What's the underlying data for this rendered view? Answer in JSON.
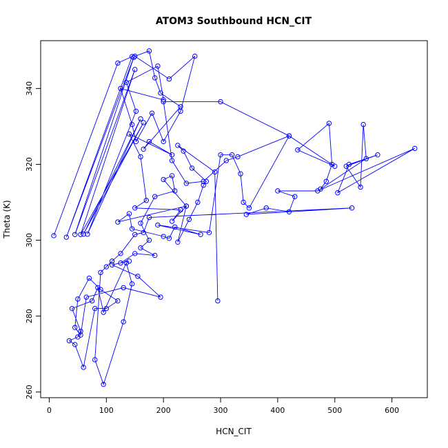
{
  "chart_data": {
    "type": "line",
    "title": "ATOM3 Southbound HCN_CIT",
    "xlabel": "HCN_CIT",
    "ylabel": "Theta (K)",
    "xlim": [
      0,
      650
    ],
    "ylim": [
      260,
      350
    ],
    "x_ticks": [
      0,
      100,
      200,
      300,
      400,
      500,
      600
    ],
    "y_ticks": [
      260,
      280,
      300,
      320,
      340
    ],
    "color": "#0000ff",
    "marker": "open-circle",
    "series": [
      {
        "x": [
          8,
          120,
          145,
          30,
          148,
          45,
          150,
          55,
          165,
          60,
          160,
          67,
          152,
          135,
          190,
          200,
          125,
          145,
          152,
          180,
          200,
          230,
          255,
          210,
          150,
          175,
          185,
          195,
          230,
          165,
          175,
          215,
          140,
          160,
          170,
          150,
          230,
          215,
          240,
          120,
          140,
          145,
          200,
          210,
          220,
          265,
          190,
          280,
          300,
          320,
          335,
          340,
          350,
          420,
          330,
          310,
          270,
          240,
          215,
          200,
          300,
          420,
          500,
          435,
          490,
          495,
          485,
          475,
          555,
          550,
          545,
          520,
          575,
          525,
          505,
          640,
          470,
          400,
          430,
          420,
          380,
          345,
          530,
          175,
          165,
          150,
          125,
          110,
          100,
          90,
          80,
          95,
          130,
          145,
          135,
          95,
          85,
          75,
          40,
          55,
          50,
          35,
          45,
          60,
          80,
          100,
          120,
          90,
          70,
          50,
          45,
          55,
          65,
          130,
          195,
          155,
          110,
          140,
          125,
          150,
          185,
          160,
          175,
          160,
          185,
          220,
          215,
          200,
          240,
          225,
          245,
          260,
          270,
          275,
          250,
          235,
          225,
          290,
          295
        ],
        "y": [
          301.2,
          346.7,
          348.4,
          300.8,
          348.2,
          301.5,
          345.0,
          301.5,
          331.0,
          301.6,
          332.0,
          301.6,
          334.0,
          341.6,
          345.9,
          337.0,
          340.0,
          330.5,
          326.0,
          333.5,
          326.0,
          334.0,
          348.5,
          342.5,
          348.5,
          349.9,
          342.8,
          338.8,
          335.2,
          324.0,
          326.0,
          322.5,
          328.0,
          322.0,
          310.5,
          308.5,
          308.0,
          305.0,
          309.0,
          304.8,
          307.0,
          303.0,
          301.0,
          300.5,
          303.5,
          301.5,
          304.0,
          302.0,
          322.5,
          322.5,
          317.5,
          310.0,
          308.5,
          327.5,
          322.0,
          321.0,
          315.5,
          315.0,
          321.0,
          336.5,
          336.5,
          327.5,
          319.5,
          323.8,
          330.8,
          320.0,
          315.5,
          313.5,
          321.5,
          330.5,
          314.0,
          319.5,
          322.5,
          320.0,
          312.5,
          324.2,
          313.0,
          313.0,
          311.5,
          307.5,
          308.5,
          306.8,
          308.5,
          306.0,
          302.0,
          301.5,
          296.5,
          294.5,
          293.0,
          291.5,
          268.5,
          262.0,
          278.5,
          288.5,
          294.0,
          281.0,
          287.5,
          284.0,
          282.0,
          276.0,
          274.5,
          273.5,
          272.5,
          266.5,
          282.0,
          282.0,
          284.0,
          287.0,
          290.0,
          284.5,
          277.0,
          275.0,
          285.0,
          287.5,
          285.0,
          290.5,
          293.5,
          294.5,
          294.0,
          296.5,
          296.0,
          298.0,
          300.0,
          304.5,
          311.5,
          313.0,
          317.0,
          316.0,
          309.0,
          299.5,
          305.5,
          310.0,
          314.5,
          315.5,
          319.0,
          323.5,
          325.0,
          318.0,
          284.0
        ]
      }
    ]
  }
}
